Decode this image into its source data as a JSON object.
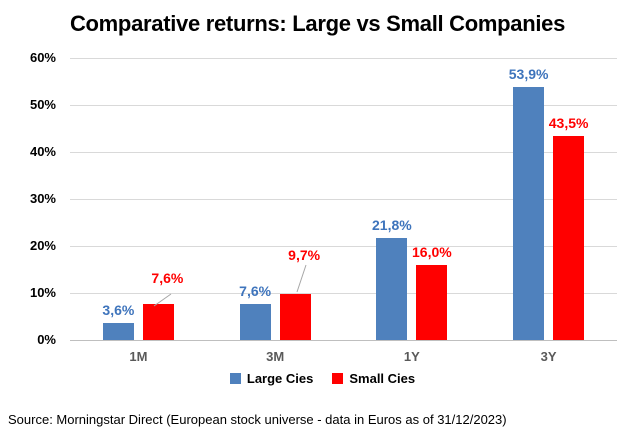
{
  "title": "Comparative returns: Large vs Small Companies",
  "source_note": "Source: Morningstar Direct (European stock universe - data in Euros as of 31/12/2023)",
  "y_axis_ticks": [
    "60%",
    "50%",
    "40%",
    "30%",
    "20%",
    "10%",
    "0%"
  ],
  "legend": {
    "items": [
      {
        "label": "Large Cies",
        "color": "#4F81BD"
      },
      {
        "label": "Small Cies",
        "color": "#FF0000"
      }
    ]
  },
  "colors": {
    "large_bar": "#4F81BD",
    "small_bar": "#FF0000",
    "large_value_label": "#3E74BC",
    "small_value_label": "#FF0000",
    "gridline": "#D9D9D9",
    "axis_line": "#BFBFBF",
    "category_label": "#595959",
    "leader_line": "#A6A6A6"
  },
  "chart_data": {
    "type": "bar",
    "title": "Comparative returns: Large vs Small Companies",
    "categories": [
      "1M",
      "3M",
      "1Y",
      "3Y"
    ],
    "series": [
      {
        "name": "Large Cies",
        "color": "#4F81BD",
        "label_color": "#3E74BC",
        "values": [
          3.6,
          7.6,
          21.8,
          53.9
        ],
        "value_labels": [
          "3,6%",
          "7,6%",
          "21,8%",
          "53,9%"
        ]
      },
      {
        "name": "Small Cies",
        "color": "#FF0000",
        "label_color": "#FF0000",
        "values": [
          7.6,
          9.7,
          16.0,
          43.5
        ],
        "value_labels": [
          "7,6%",
          "9,7%",
          "16,0%",
          "43,5%"
        ]
      }
    ],
    "xlabel": "",
    "ylabel": "",
    "ylim": [
      0,
      60
    ],
    "y_tick_step": 10,
    "y_tick_format": "percent",
    "grid": true,
    "legend_position": "bottom",
    "decimal_separator": ","
  }
}
